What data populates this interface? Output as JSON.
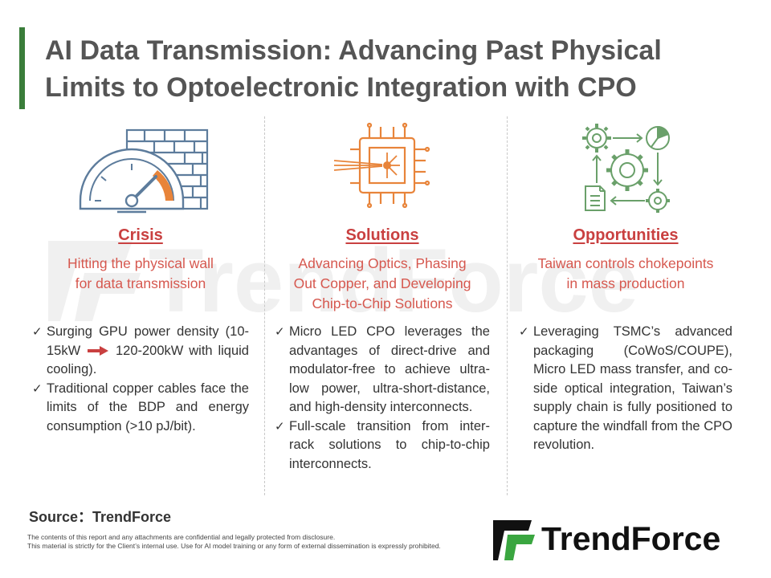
{
  "title": {
    "line1": "AI Data Transmission: Advancing Past Physical",
    "line2": "Limits to Optoelectronic Integration with CPO"
  },
  "watermark_text": "TrendForce",
  "columns": [
    {
      "icon": "gauge-brick-wall-icon",
      "heading": "Crisis",
      "subtitle": [
        "Hitting the physical wall",
        "for data transmission"
      ],
      "bullets": [
        {
          "pre": "Surging GPU power density (10-15kW",
          "arrow": "right-arrow-icon",
          "post": "120-200kW with liquid cooling)."
        },
        {
          "text": "Traditional copper cables face the limits of the BDP and energy consumption (>10 pJ/bit)."
        }
      ]
    },
    {
      "icon": "chip-laser-icon",
      "heading": "Solutions",
      "subtitle": [
        "Advancing Optics, Phasing",
        "Out Copper, and Developing",
        "Chip-to-Chip Solutions"
      ],
      "bullets": [
        {
          "text": "Micro LED CPO leverages the advantages of direct-drive and modulator-free to achieve ultra-low power, ultra-short-distance, and high-density interconnects."
        },
        {
          "text": "Full-scale transition from inter-rack solutions to chip-to-chip interconnects."
        }
      ]
    },
    {
      "icon": "gears-workflow-icon",
      "heading": "Opportunities",
      "subtitle": [
        "Taiwan controls chokepoints",
        "in mass production"
      ],
      "bullets": [
        {
          "text": "Leveraging TSMC’s advanced packaging (CoWoS/COUPE), Micro LED mass transfer, and co-side optical integration, Taiwan’s supply chain is fully positioned to capture the windfall from the CPO revolution."
        }
      ]
    }
  ],
  "check_mark": "✓",
  "source": "Source：TrendForce",
  "disclaimer": [
    "The contents of this report and any attachments are confidential and legally protected from disclosure.",
    "This material is strictly for the Client’s internal use. Use for AI model training or any form of external dissemination is expressly prohibited."
  ],
  "brand": "TrendForce",
  "colors": {
    "accent_green": "#3a7d3a",
    "heading_red": "#c94040",
    "subtitle_red": "#d6584f",
    "icon_blue": "#5d7c9c",
    "icon_orange": "#e8843a",
    "icon_green": "#6aa06a",
    "brand_green": "#3aa640"
  }
}
